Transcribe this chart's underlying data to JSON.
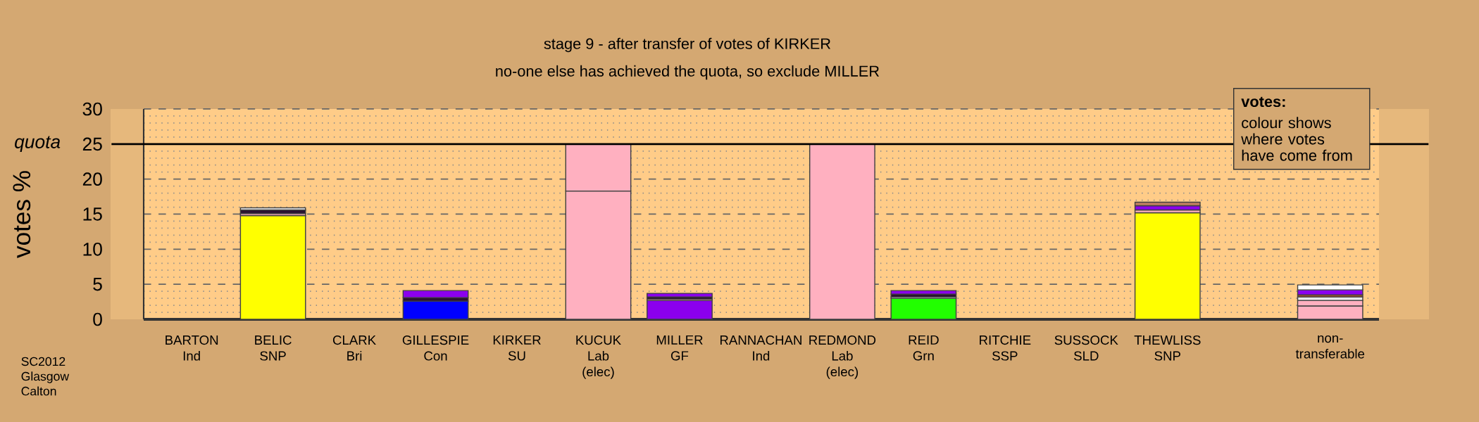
{
  "chart_data": {
    "type": "bar",
    "stacked": true,
    "title": "stage 9 - after transfer of votes of KIRKER",
    "subtitle": "no-one else has achieved the quota, so exclude MILLER",
    "ylabel": "votes %",
    "categories": [
      "BARTON Ind",
      "BELIC SNP",
      "CLARK Bri",
      "GILLESPIE Con",
      "KIRKER SU",
      "KUCUK Lab (elec)",
      "MILLER GF",
      "RANNACHAN Ind",
      "REDMOND Lab (elec)",
      "REID Grn",
      "RITCHIE SSP",
      "SUSSOCK SLD",
      "THEWLISS SNP",
      null,
      "non-transferable"
    ],
    "series": [
      {
        "color": "#ffff00",
        "values": [
          null,
          14.8,
          null,
          null,
          null,
          null,
          null,
          null,
          null,
          null,
          null,
          null,
          15.2,
          null,
          null
        ]
      },
      {
        "color": "#0000ff",
        "values": [
          null,
          null,
          null,
          2.6,
          null,
          null,
          null,
          null,
          null,
          null,
          null,
          null,
          null,
          null,
          null
        ]
      },
      {
        "color": "#8b00ee",
        "values": [
          null,
          null,
          null,
          null,
          null,
          null,
          2.7,
          null,
          null,
          null,
          null,
          null,
          null,
          null,
          null
        ]
      },
      {
        "color": "#22ff00",
        "values": [
          null,
          null,
          null,
          null,
          null,
          null,
          null,
          null,
          null,
          3.0,
          null,
          null,
          null,
          null,
          null
        ]
      },
      {
        "color": "#ffb0c0",
        "values": [
          null,
          null,
          null,
          null,
          null,
          18.3,
          null,
          null,
          25,
          null,
          null,
          null,
          null,
          null,
          1.9
        ]
      },
      {
        "color": "#ffb0c0",
        "values": [
          null,
          0.3,
          null,
          null,
          null,
          6.7,
          0.2,
          null,
          null,
          null,
          null,
          null,
          0.4,
          null,
          0.8
        ]
      },
      {
        "color": "#e8e8e8",
        "values": [
          null,
          null,
          null,
          null,
          null,
          null,
          null,
          null,
          null,
          0.2,
          null,
          null,
          null,
          null,
          0.5
        ]
      },
      {
        "color": "#a0522d",
        "values": [
          null,
          null,
          null,
          null,
          null,
          null,
          null,
          null,
          null,
          null,
          null,
          null,
          null,
          null,
          0.3
        ]
      },
      {
        "color": "#2a1030",
        "values": [
          null,
          0.5,
          null,
          0.5,
          null,
          null,
          0.3,
          null,
          null,
          0.4,
          null,
          null,
          null,
          null,
          null
        ]
      },
      {
        "color": "#8b00ee",
        "values": [
          null,
          null,
          null,
          1.0,
          null,
          null,
          0.5,
          null,
          null,
          0.5,
          null,
          null,
          0.6,
          null,
          0.7
        ]
      },
      {
        "color": "#ffffff",
        "values": [
          null,
          0.3,
          null,
          null,
          null,
          null,
          null,
          null,
          null,
          null,
          null,
          null,
          null,
          null,
          0.7
        ]
      },
      {
        "color": "#c08060",
        "values": [
          null,
          null,
          null,
          null,
          null,
          null,
          null,
          null,
          null,
          null,
          null,
          null,
          0.5,
          null,
          null
        ]
      }
    ],
    "ylim": [
      0,
      30
    ],
    "yticks": [
      0,
      5,
      10,
      15,
      20,
      25,
      30
    ],
    "grid": "y",
    "ref_lines": [
      {
        "axis": "y",
        "value": 25,
        "label": "quota"
      }
    ],
    "annotations": [
      "votes:",
      "colour shows where votes have come from",
      "SC2012 Glasgow Calton"
    ]
  }
}
